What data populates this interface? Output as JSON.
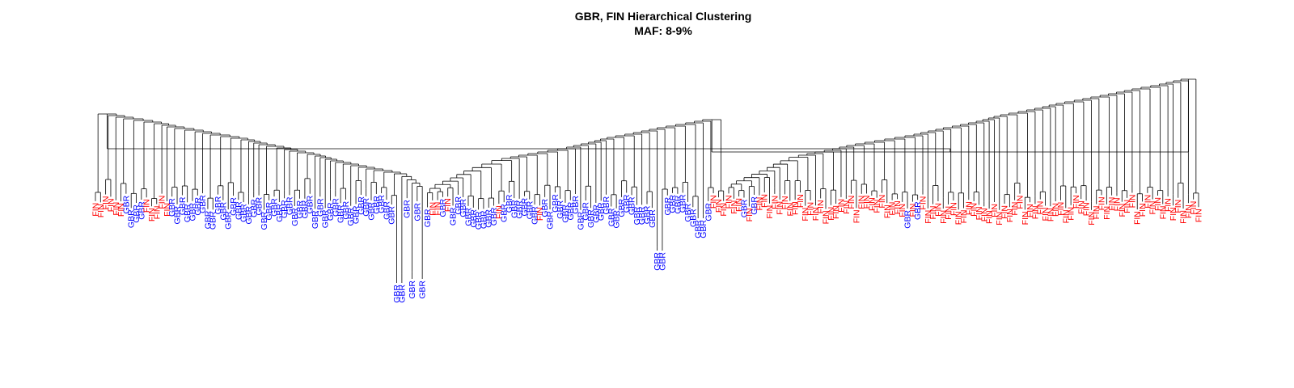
{
  "title": "GBR, FIN Hierarchical Clustering",
  "subtitle": "MAF: 8-9%",
  "groups": [
    {
      "label": "GBR",
      "color": "#0000ff"
    },
    {
      "label": "FIN",
      "color": "#ff0000"
    }
  ],
  "leaf_sequence": "FFFFFFGGGGFFFFFGGGGGGGGGGGGGGGGGGGGGGGGGGGGGGGGGGGGGGGGGGGGGGGGGGGFFGFGGGGGGGGGFGGGGGGGFGGGGGGGGGGGGGGGGGGGGGGGGGGGGGGGGGFFFFFFGFGFFFFFFFFFFFFFFFFFFFFFFFFFFFFFGFGFFFFFFFFFFFFFFFFFFFFFFFFFFFFFFFFFFFFFFFFFFFFFFFFFFFFFFF"
}
